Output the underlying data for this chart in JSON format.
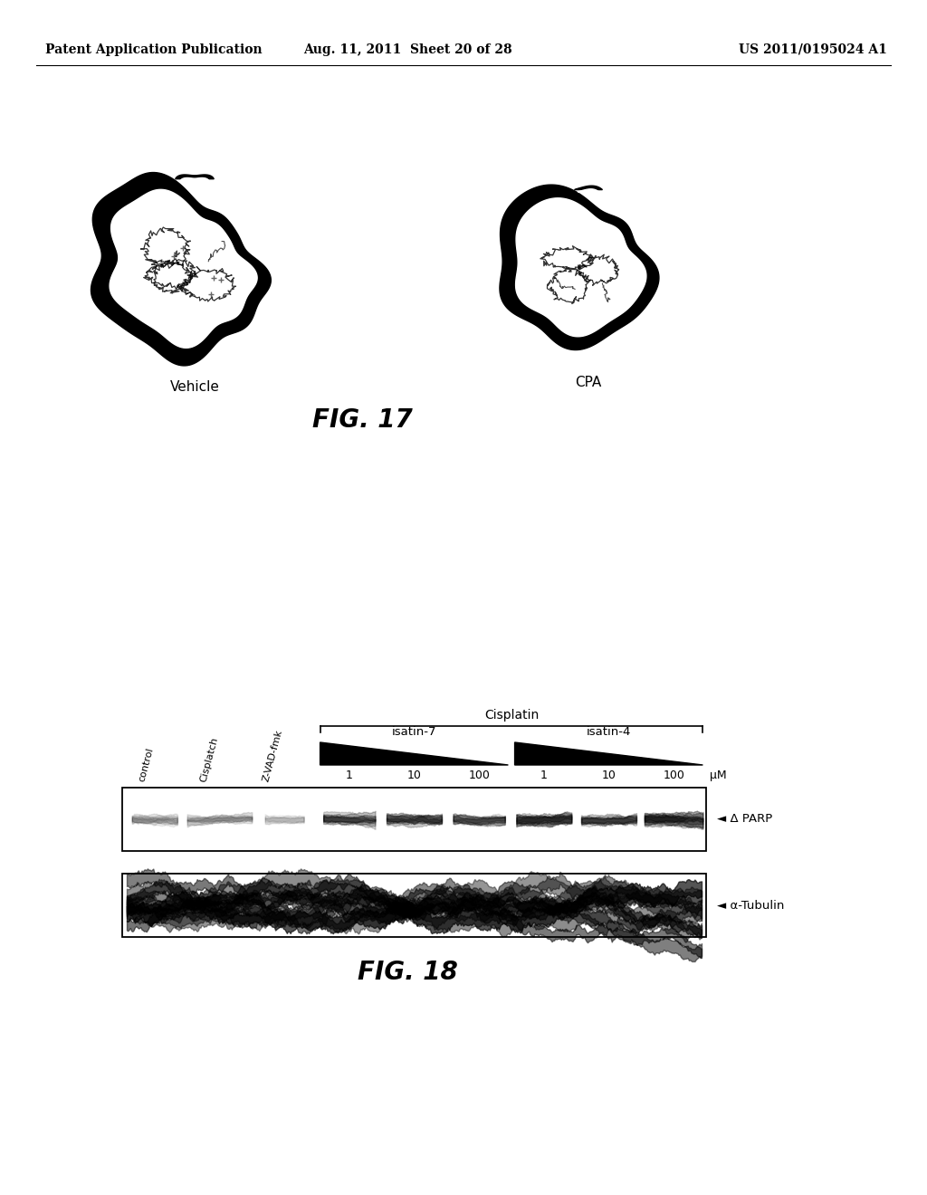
{
  "background_color": "#ffffff",
  "header": {
    "left": "Patent Application Publication",
    "center": "Aug. 11, 2011  Sheet 20 of 28",
    "right": "US 2011/0195024 A1",
    "fontsize": 10
  },
  "fig17": {
    "caption": "FIG. 17",
    "caption_fontsize": 20,
    "vehicle_label": "Vehicle",
    "cpa_label": "CPA"
  },
  "fig18": {
    "caption": "FIG. 18",
    "caption_fontsize": 20,
    "cisplatin_label": "Cisplatin",
    "isatin7_label": "isatin-7",
    "isatin4_label": "isatin-4",
    "rotated_labels": [
      "control",
      "Cisplatch",
      "Z-VAD-fmk"
    ],
    "tick_labels": [
      "1",
      "10",
      "100",
      "1",
      "10",
      "100",
      "μM"
    ],
    "parp_label": "◄ Δ PARP",
    "tubulin_label": "◄ α-Tubulin"
  }
}
